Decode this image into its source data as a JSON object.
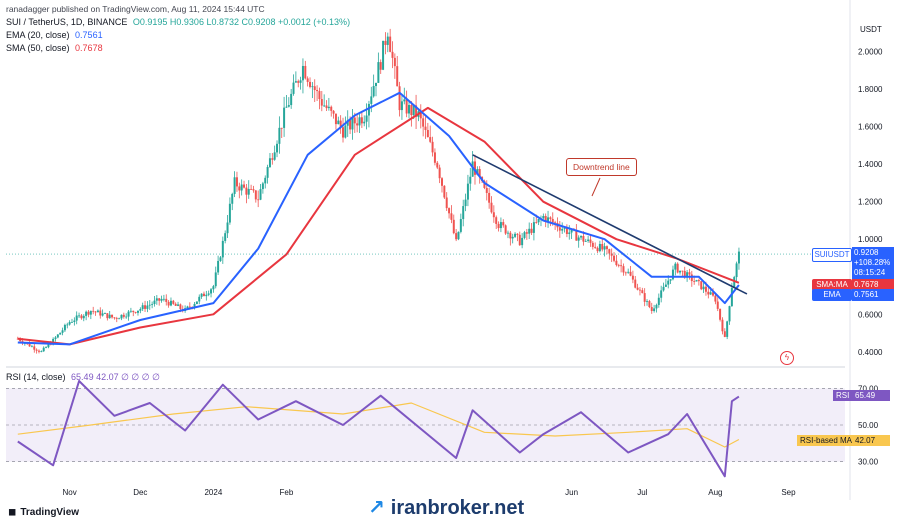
{
  "header": {
    "publisher": "ranadagger published on TradingView.com, Aug 11, 2024 15:44 UTC",
    "symbol_line": "SUI / TetherUS, 1D, BINANCE",
    "ohlc": "O0.9195 H0.9306 L0.8732 C0.9208 +0.0012 (+0.13%)",
    "ema_label": "EMA (20, close)",
    "ema_value": "0.7561",
    "sma_label": "SMA (50, close)",
    "sma_value": "0.7678",
    "rsi_label": "RSI (14, close)",
    "rsi_values": "65.49 42.07 ∅ ∅ ∅ ∅"
  },
  "axis": {
    "currency": "USDT",
    "price_ticks": [
      "2.0000",
      "1.8000",
      "1.6000",
      "1.4000",
      "1.2000",
      "1.0000",
      "0.6000",
      "0.4000"
    ],
    "rsi_ticks": [
      "70.00",
      "50.00",
      "30.00"
    ],
    "time_ticks": [
      "Nov",
      "Dec",
      "2024",
      "Feb",
      "Jun",
      "Jul",
      "Aug",
      "Sep"
    ]
  },
  "tags": {
    "price_tag": "SUIUSDT",
    "price_value": "0.9208",
    "price_change": "+108.28%",
    "countdown": "08:15:24",
    "sma_tag": "SMA:MA",
    "sma_value": "0.7678",
    "ema_tag": "EMA",
    "ema_value": "0.7561",
    "rsi_tag": "RSI",
    "rsi_value": "65.49",
    "rsima_tag": "RSI-based MA",
    "rsima_value": "42.07"
  },
  "annotation": "Downtrend line",
  "footer": {
    "tradingview": "TradingView",
    "watermark": "iranbroker.net"
  },
  "colors": {
    "up": "#26a69a",
    "down": "#ef5350",
    "ema": "#2962ff",
    "sma": "#e8363f",
    "rsi": "#7e57c2",
    "rsi_ma": "#f9c74f",
    "trendline": "#1f3b6f"
  },
  "chart_data": {
    "type": "candlestick",
    "title": "SUI / TetherUS, 1D, BINANCE",
    "ylim": [
      0.33,
      2.2
    ],
    "close_path": [
      [
        "2023-10-10",
        0.47
      ],
      [
        "2023-10-20",
        0.4
      ],
      [
        "2023-10-25",
        0.46
      ],
      [
        "2023-11-01",
        0.56
      ],
      [
        "2023-11-10",
        0.62
      ],
      [
        "2023-11-20",
        0.58
      ],
      [
        "2023-12-01",
        0.63
      ],
      [
        "2023-12-10",
        0.68
      ],
      [
        "2023-12-20",
        0.62
      ],
      [
        "2024-01-01",
        0.75
      ],
      [
        "2024-01-05",
        0.98
      ],
      [
        "2024-01-10",
        1.3
      ],
      [
        "2024-01-20",
        1.22
      ],
      [
        "2024-01-25",
        1.42
      ],
      [
        "2024-02-01",
        1.7
      ],
      [
        "2024-02-08",
        1.92
      ],
      [
        "2024-02-15",
        1.75
      ],
      [
        "2024-02-25",
        1.58
      ],
      [
        "2024-03-05",
        1.66
      ],
      [
        "2024-03-12",
        1.95
      ],
      [
        "2024-03-15",
        2.12
      ],
      [
        "2024-03-20",
        1.72
      ],
      [
        "2024-03-28",
        1.66
      ],
      [
        "2024-04-05",
        1.4
      ],
      [
        "2024-04-13",
        0.98
      ],
      [
        "2024-04-20",
        1.4
      ],
      [
        "2024-05-01",
        1.08
      ],
      [
        "2024-05-10",
        0.99
      ],
      [
        "2024-05-20",
        1.12
      ],
      [
        "2024-06-01",
        1.03
      ],
      [
        "2024-06-15",
        0.94
      ],
      [
        "2024-06-25",
        0.82
      ],
      [
        "2024-07-05",
        0.62
      ],
      [
        "2024-07-15",
        0.85
      ],
      [
        "2024-07-25",
        0.76
      ],
      [
        "2024-08-01",
        0.68
      ],
      [
        "2024-08-05",
        0.47
      ],
      [
        "2024-08-08",
        0.75
      ],
      [
        "2024-08-11",
        0.92
      ]
    ],
    "ema_20_path": [
      [
        "2023-10-10",
        0.45
      ],
      [
        "2023-11-01",
        0.44
      ],
      [
        "2023-12-01",
        0.57
      ],
      [
        "2024-01-01",
        0.66
      ],
      [
        "2024-01-20",
        0.95
      ],
      [
        "2024-02-10",
        1.45
      ],
      [
        "2024-03-01",
        1.66
      ],
      [
        "2024-03-20",
        1.78
      ],
      [
        "2024-04-10",
        1.55
      ],
      [
        "2024-04-25",
        1.3
      ],
      [
        "2024-05-20",
        1.1
      ],
      [
        "2024-06-15",
        1.0
      ],
      [
        "2024-07-05",
        0.8
      ],
      [
        "2024-07-25",
        0.8
      ],
      [
        "2024-08-05",
        0.66
      ],
      [
        "2024-08-11",
        0.7561
      ]
    ],
    "sma_50_path": [
      [
        "2023-10-10",
        0.47
      ],
      [
        "2023-11-01",
        0.44
      ],
      [
        "2023-12-01",
        0.53
      ],
      [
        "2024-01-01",
        0.6
      ],
      [
        "2024-02-01",
        0.92
      ],
      [
        "2024-03-01",
        1.45
      ],
      [
        "2024-04-01",
        1.7
      ],
      [
        "2024-04-25",
        1.52
      ],
      [
        "2024-05-20",
        1.2
      ],
      [
        "2024-06-20",
        1.0
      ],
      [
        "2024-07-15",
        0.9
      ],
      [
        "2024-08-11",
        0.7678
      ]
    ],
    "trendline": [
      [
        "2024-04-20",
        1.45
      ],
      [
        "2024-08-11",
        0.73
      ]
    ],
    "rsi_ylim": [
      20,
      80
    ],
    "rsi_path": [
      [
        "2023-10-10",
        41
      ],
      [
        "2023-10-25",
        28
      ],
      [
        "2023-11-05",
        74
      ],
      [
        "2023-11-20",
        55
      ],
      [
        "2023-12-05",
        62
      ],
      [
        "2023-12-20",
        47
      ],
      [
        "2024-01-05",
        72
      ],
      [
        "2024-01-20",
        53
      ],
      [
        "2024-02-05",
        63
      ],
      [
        "2024-02-25",
        50
      ],
      [
        "2024-03-12",
        66
      ],
      [
        "2024-04-13",
        32
      ],
      [
        "2024-04-20",
        58
      ],
      [
        "2024-05-10",
        35
      ],
      [
        "2024-05-20",
        45
      ],
      [
        "2024-06-05",
        57
      ],
      [
        "2024-06-25",
        35
      ],
      [
        "2024-07-12",
        45
      ],
      [
        "2024-07-20",
        56
      ],
      [
        "2024-08-05",
        22
      ],
      [
        "2024-08-08",
        63
      ],
      [
        "2024-08-11",
        65.49
      ]
    ],
    "rsi_ma_path": [
      [
        "2023-10-10",
        45
      ],
      [
        "2023-11-10",
        50
      ],
      [
        "2023-12-15",
        56
      ],
      [
        "2024-01-15",
        60
      ],
      [
        "2024-02-25",
        56
      ],
      [
        "2024-03-25",
        62
      ],
      [
        "2024-04-25",
        46
      ],
      [
        "2024-05-25",
        44
      ],
      [
        "2024-06-25",
        46
      ],
      [
        "2024-07-20",
        48
      ],
      [
        "2024-08-05",
        38
      ],
      [
        "2024-08-11",
        42.07
      ]
    ]
  }
}
